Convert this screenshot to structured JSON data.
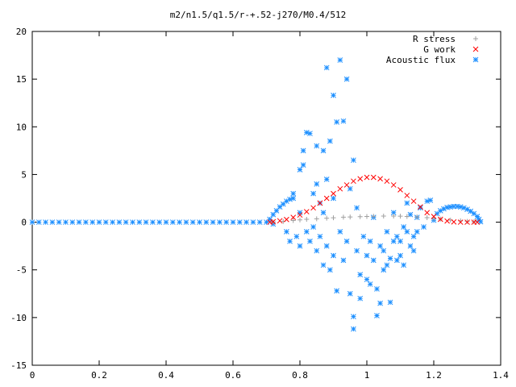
{
  "chart_data": {
    "type": "scatter",
    "title": "m2/n1.5/q1.5/r-+.52-j270/M0.4/512",
    "xlabel": "",
    "ylabel": "",
    "xlim": [
      0,
      1.4
    ],
    "ylim": [
      -15,
      20
    ],
    "xticks": [
      "0",
      "0.2",
      "0.4",
      "0.6",
      "0.8",
      "1",
      "1.2",
      "1.4"
    ],
    "yticks": [
      "-15",
      "-10",
      "-5",
      "0",
      "5",
      "10",
      "15",
      "20"
    ],
    "legend_position": "top-right",
    "grid": false,
    "series": [
      {
        "name": "R stress",
        "marker": "+",
        "color": "#a0a0a0",
        "points": [
          [
            0.72,
            0.02
          ],
          [
            0.75,
            0.08
          ],
          [
            0.78,
            0.18
          ],
          [
            0.8,
            0.24
          ],
          [
            0.82,
            0.3
          ],
          [
            0.85,
            0.36
          ],
          [
            0.88,
            0.42
          ],
          [
            0.9,
            0.46
          ],
          [
            0.93,
            0.52
          ],
          [
            0.95,
            0.55
          ],
          [
            0.98,
            0.58
          ],
          [
            1.0,
            0.6
          ],
          [
            1.02,
            0.62
          ],
          [
            1.05,
            0.64
          ],
          [
            1.08,
            0.64
          ],
          [
            1.1,
            0.63
          ],
          [
            1.12,
            0.6
          ],
          [
            1.15,
            0.55
          ],
          [
            1.18,
            0.47
          ],
          [
            1.2,
            0.4
          ],
          [
            1.22,
            0.32
          ],
          [
            1.25,
            0.22
          ],
          [
            1.28,
            0.14
          ],
          [
            1.3,
            0.08
          ],
          [
            1.32,
            0.04
          ]
        ]
      },
      {
        "name": "G work",
        "marker": "x",
        "color": "#ff0000",
        "points": [
          [
            0.71,
            0.0
          ],
          [
            0.72,
            0.05
          ],
          [
            0.74,
            0.15
          ],
          [
            0.76,
            0.28
          ],
          [
            0.78,
            0.5
          ],
          [
            0.8,
            0.75
          ],
          [
            0.82,
            1.1
          ],
          [
            0.84,
            1.5
          ],
          [
            0.86,
            2.0
          ],
          [
            0.88,
            2.5
          ],
          [
            0.9,
            3.0
          ],
          [
            0.92,
            3.5
          ],
          [
            0.94,
            3.9
          ],
          [
            0.96,
            4.3
          ],
          [
            0.98,
            4.55
          ],
          [
            1.0,
            4.7
          ],
          [
            1.02,
            4.7
          ],
          [
            1.04,
            4.55
          ],
          [
            1.06,
            4.3
          ],
          [
            1.08,
            3.9
          ],
          [
            1.1,
            3.4
          ],
          [
            1.12,
            2.8
          ],
          [
            1.14,
            2.2
          ],
          [
            1.16,
            1.6
          ],
          [
            1.18,
            1.0
          ],
          [
            1.2,
            0.6
          ],
          [
            1.22,
            0.3
          ],
          [
            1.24,
            0.12
          ],
          [
            1.26,
            0.03
          ],
          [
            1.28,
            0.0
          ],
          [
            1.3,
            0.0
          ],
          [
            1.32,
            0.0
          ],
          [
            1.33,
            0.0
          ]
        ]
      },
      {
        "name": "Acoustic flux",
        "marker": "*",
        "color": "#1e90ff",
        "points": [
          [
            0.0,
            0.0
          ],
          [
            0.02,
            0.0
          ],
          [
            0.04,
            0.0
          ],
          [
            0.06,
            0.0
          ],
          [
            0.08,
            0.0
          ],
          [
            0.1,
            0.0
          ],
          [
            0.12,
            0.0
          ],
          [
            0.14,
            0.0
          ],
          [
            0.16,
            0.0
          ],
          [
            0.18,
            0.0
          ],
          [
            0.2,
            0.0
          ],
          [
            0.22,
            0.0
          ],
          [
            0.24,
            0.0
          ],
          [
            0.26,
            0.0
          ],
          [
            0.28,
            0.0
          ],
          [
            0.3,
            0.0
          ],
          [
            0.32,
            0.0
          ],
          [
            0.34,
            0.0
          ],
          [
            0.36,
            0.0
          ],
          [
            0.38,
            0.0
          ],
          [
            0.4,
            0.0
          ],
          [
            0.42,
            0.0
          ],
          [
            0.44,
            0.0
          ],
          [
            0.46,
            0.0
          ],
          [
            0.48,
            0.0
          ],
          [
            0.5,
            0.0
          ],
          [
            0.52,
            0.0
          ],
          [
            0.54,
            0.0
          ],
          [
            0.56,
            0.0
          ],
          [
            0.58,
            0.0
          ],
          [
            0.6,
            0.0
          ],
          [
            0.62,
            0.0
          ],
          [
            0.64,
            0.0
          ],
          [
            0.66,
            0.0
          ],
          [
            0.68,
            0.0
          ],
          [
            0.7,
            0.0
          ],
          [
            0.71,
            0.3
          ],
          [
            0.72,
            0.8
          ],
          [
            0.73,
            1.2
          ],
          [
            0.74,
            1.6
          ],
          [
            0.75,
            1.9
          ],
          [
            0.76,
            2.2
          ],
          [
            0.77,
            2.4
          ],
          [
            0.78,
            2.5
          ],
          [
            0.72,
            -0.2
          ],
          [
            0.76,
            -1.0
          ],
          [
            0.77,
            -2.0
          ],
          [
            0.78,
            3.0
          ],
          [
            0.79,
            -1.5
          ],
          [
            0.8,
            1.0
          ],
          [
            0.8,
            -2.5
          ],
          [
            0.8,
            5.5
          ],
          [
            0.81,
            7.5
          ],
          [
            0.81,
            6.0
          ],
          [
            0.82,
            -1.0
          ],
          [
            0.82,
            9.4
          ],
          [
            0.83,
            9.3
          ],
          [
            0.83,
            -2.0
          ],
          [
            0.84,
            3.0
          ],
          [
            0.84,
            -0.5
          ],
          [
            0.85,
            8.0
          ],
          [
            0.85,
            4.0
          ],
          [
            0.85,
            -3.0
          ],
          [
            0.86,
            2.0
          ],
          [
            0.86,
            -1.5
          ],
          [
            0.87,
            7.5
          ],
          [
            0.87,
            -4.5
          ],
          [
            0.87,
            1.0
          ],
          [
            0.88,
            16.2
          ],
          [
            0.88,
            4.5
          ],
          [
            0.88,
            -2.5
          ],
          [
            0.89,
            -5.0
          ],
          [
            0.89,
            8.5
          ],
          [
            0.9,
            13.3
          ],
          [
            0.9,
            -3.5
          ],
          [
            0.9,
            2.5
          ],
          [
            0.91,
            10.5
          ],
          [
            0.91,
            -7.2
          ],
          [
            0.92,
            17.0
          ],
          [
            0.92,
            -1.0
          ],
          [
            0.93,
            10.6
          ],
          [
            0.93,
            -4.0
          ],
          [
            0.94,
            15.0
          ],
          [
            0.94,
            -2.0
          ],
          [
            0.95,
            -7.5
          ],
          [
            0.95,
            3.5
          ],
          [
            0.96,
            -9.9
          ],
          [
            0.96,
            6.5
          ],
          [
            0.96,
            -11.2
          ],
          [
            0.97,
            -3.0
          ],
          [
            0.97,
            1.5
          ],
          [
            0.98,
            -5.5
          ],
          [
            0.98,
            -8.0
          ],
          [
            0.99,
            -1.5
          ],
          [
            1.0,
            -6.0
          ],
          [
            1.0,
            -3.5
          ],
          [
            1.01,
            -2.0
          ],
          [
            1.01,
            -6.5
          ],
          [
            1.02,
            -4.0
          ],
          [
            1.02,
            0.5
          ],
          [
            1.03,
            -9.8
          ],
          [
            1.03,
            -7.0
          ],
          [
            1.04,
            -8.5
          ],
          [
            1.04,
            -2.5
          ],
          [
            1.05,
            -3.0
          ],
          [
            1.05,
            -5.0
          ],
          [
            1.06,
            -1.0
          ],
          [
            1.06,
            -4.5
          ],
          [
            1.07,
            -8.4
          ],
          [
            1.07,
            -3.8
          ],
          [
            1.08,
            -2.0
          ],
          [
            1.08,
            1.0
          ],
          [
            1.09,
            -4.0
          ],
          [
            1.09,
            -1.5
          ],
          [
            1.1,
            -3.5
          ],
          [
            1.1,
            -2.0
          ],
          [
            1.11,
            -0.5
          ],
          [
            1.11,
            -4.5
          ],
          [
            1.12,
            -1.0
          ],
          [
            1.12,
            2.0
          ],
          [
            1.13,
            -2.5
          ],
          [
            1.13,
            0.8
          ],
          [
            1.14,
            -1.5
          ],
          [
            1.14,
            -3.0
          ],
          [
            1.15,
            0.5
          ],
          [
            1.15,
            -1.0
          ],
          [
            1.16,
            1.5
          ],
          [
            1.17,
            -0.5
          ],
          [
            1.18,
            2.2
          ],
          [
            1.19,
            2.3
          ],
          [
            1.2,
            0.2
          ],
          [
            1.21,
            0.9
          ],
          [
            1.22,
            1.2
          ],
          [
            1.23,
            1.4
          ],
          [
            1.24,
            1.55
          ],
          [
            1.25,
            1.6
          ],
          [
            1.26,
            1.65
          ],
          [
            1.27,
            1.65
          ],
          [
            1.28,
            1.6
          ],
          [
            1.29,
            1.5
          ],
          [
            1.3,
            1.35
          ],
          [
            1.31,
            1.15
          ],
          [
            1.32,
            0.9
          ],
          [
            1.33,
            0.6
          ],
          [
            1.335,
            0.3
          ],
          [
            1.34,
            0.05
          ]
        ]
      }
    ]
  }
}
